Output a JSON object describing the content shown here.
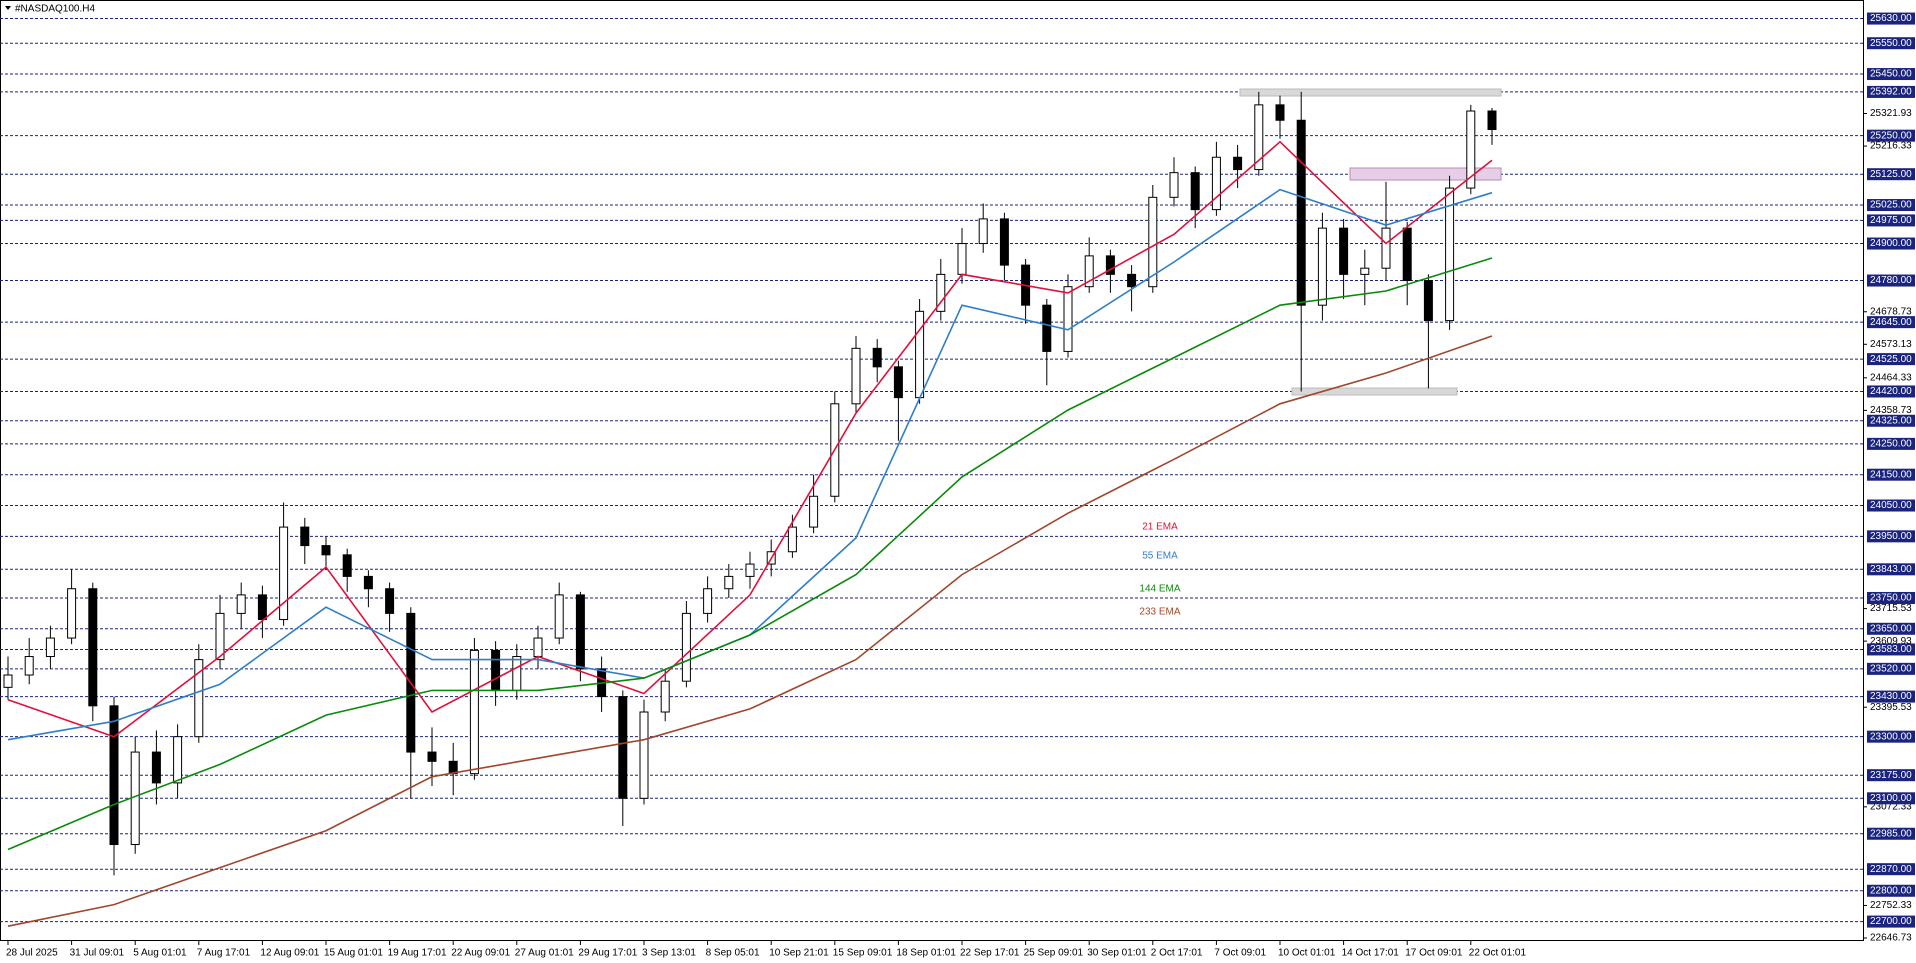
{
  "chart_data": {
    "type": "candlestick",
    "title": "#NASDAQ100.H4",
    "categories": [
      "28 Jul 2025",
      null,
      null,
      "31 Jul 09:01",
      null,
      null,
      "5 Aug 01:01",
      null,
      null,
      "7 Aug 17:01",
      null,
      null,
      "12 Aug 09:01",
      null,
      null,
      "15 Aug 01:01",
      null,
      null,
      "19 Aug 17:01",
      null,
      null,
      "22 Aug 09:01",
      null,
      null,
      "27 Aug 01:01",
      null,
      null,
      "29 Aug 17:01",
      null,
      null,
      "3 Sep 13:01",
      null,
      null,
      "8 Sep 05:01",
      null,
      null,
      "10 Sep 21:01",
      null,
      null,
      "15 Sep 09:01",
      null,
      null,
      "18 Sep 01:01",
      null,
      null,
      "22 Sep 17:01",
      null,
      null,
      "25 Sep 09:01",
      null,
      null,
      "30 Sep 01:01",
      null,
      null,
      "2 Oct 17:01",
      null,
      null,
      "7 Oct 09:01",
      null,
      null,
      "10 Oct 01:01",
      null,
      null,
      "14 Oct 17:01",
      null,
      null,
      "17 Oct 09:01",
      null,
      null,
      "22 Oct 01:01",
      null
    ],
    "open": [
      23460,
      23500,
      23560,
      23620,
      23780,
      23400,
      22950,
      23250,
      23150,
      23300,
      23550,
      23700,
      23760,
      23680,
      23980,
      23920,
      23890,
      23820,
      23780,
      23700,
      23250,
      23220,
      23180,
      23580,
      23450,
      23560,
      23620,
      23760,
      23520,
      23430,
      23100,
      23380,
      23480,
      23700,
      23780,
      23820,
      23860,
      23900,
      23980,
      24080,
      24380,
      24560,
      24500,
      24400,
      24680,
      24800,
      24900,
      24980,
      24830,
      24700,
      24550,
      24760,
      24860,
      24800,
      24760,
      25050,
      25130,
      25010,
      25180,
      25140,
      25350,
      25300,
      24700,
      24950,
      24800,
      24820,
      24950,
      24780,
      24650,
      25080,
      25330
    ],
    "high": [
      23560,
      23620,
      23660,
      23843,
      23800,
      23430,
      23300,
      23320,
      23340,
      23600,
      23760,
      23800,
      23790,
      24060,
      24010,
      23950,
      23910,
      23840,
      23800,
      23720,
      23330,
      23280,
      23620,
      23610,
      23600,
      23660,
      23800,
      23770,
      23560,
      23450,
      23420,
      23520,
      23740,
      23820,
      23860,
      23900,
      23940,
      24020,
      24150,
      24420,
      24600,
      24590,
      24520,
      24720,
      24850,
      24950,
      25030,
      25000,
      24850,
      24720,
      24800,
      24920,
      24880,
      24830,
      25090,
      25180,
      25150,
      25230,
      25220,
      25392,
      25380,
      25392,
      25000,
      24980,
      24880,
      25100,
      24970,
      24800,
      25120,
      25350,
      25340
    ],
    "low": [
      23420,
      23470,
      23520,
      23600,
      23350,
      22850,
      22920,
      23080,
      23100,
      23280,
      23520,
      23650,
      23620,
      23660,
      23860,
      23840,
      23770,
      23720,
      23640,
      23100,
      23140,
      23110,
      23160,
      23400,
      23420,
      23520,
      23600,
      23480,
      23380,
      23010,
      23080,
      23350,
      23460,
      23670,
      23750,
      23780,
      23820,
      23880,
      23960,
      24060,
      24350,
      24450,
      24260,
      24380,
      24650,
      24770,
      24870,
      24780,
      24640,
      24440,
      24530,
      24740,
      24740,
      24680,
      24740,
      25020,
      24950,
      24990,
      25080,
      25120,
      25240,
      24420,
      24650,
      24720,
      24700,
      24780,
      24700,
      24430,
      24620,
      25060,
      25220
    ],
    "close": [
      23500,
      23560,
      23620,
      23780,
      23400,
      22950,
      23250,
      23150,
      23300,
      23550,
      23700,
      23760,
      23680,
      23980,
      23920,
      23890,
      23820,
      23780,
      23700,
      23250,
      23220,
      23180,
      23580,
      23450,
      23560,
      23620,
      23760,
      23520,
      23430,
      23100,
      23380,
      23480,
      23700,
      23780,
      23820,
      23860,
      23900,
      23980,
      24080,
      24380,
      24560,
      24500,
      24400,
      24680,
      24800,
      24900,
      24980,
      24830,
      24700,
      24550,
      24760,
      24860,
      24800,
      24760,
      25050,
      25130,
      25010,
      25180,
      25140,
      25350,
      25300,
      24700,
      24950,
      24800,
      24820,
      24950,
      24780,
      24650,
      25080,
      25330,
      25270
    ],
    "x": [
      0,
      5,
      10,
      15,
      20,
      25,
      30,
      35,
      40,
      45,
      50,
      55,
      60,
      65,
      70
    ],
    "series": [
      {
        "name": "21 EMA",
        "color": "#e0103a",
        "values": [
          23420,
          23300,
          23560,
          23850,
          23380,
          23560,
          23440,
          23760,
          24350,
          24800,
          24740,
          24930,
          25230,
          24900,
          25170
        ]
      },
      {
        "name": "55 EMA",
        "color": "#2f7fc8",
        "values": [
          23290,
          23350,
          23470,
          23720,
          23550,
          23550,
          23490,
          23630,
          23945,
          24700,
          24620,
          24840,
          25075,
          24960,
          25065
        ]
      },
      {
        "name": "144 EMA",
        "color": "#0a8a0a",
        "values": [
          22934,
          23080,
          23210,
          23370,
          23450,
          23450,
          23490,
          23630,
          23826,
          24143,
          24360,
          24530,
          24700,
          24746,
          24853
        ]
      },
      {
        "name": "233 EMA",
        "color": "#a0472a",
        "values": [
          22685,
          22755,
          22875,
          22995,
          23170,
          23230,
          23290,
          23390,
          23550,
          23826,
          24025,
          24200,
          24380,
          24480,
          24600
        ]
      }
    ],
    "ylim": [
      22637,
      25674
    ],
    "yticks": [
      25321.93,
      25216.33,
      24678.73,
      24573.13,
      24464.33,
      24358.73,
      23715.53,
      23609.93,
      23395.53,
      23072.33,
      22752.33,
      22646.73
    ],
    "levels": [
      {
        "value": 25630,
        "label": "25630.00"
      },
      {
        "value": 25550,
        "label": "25550.00"
      },
      {
        "value": 25450,
        "label": "25450.00"
      },
      {
        "value": 25392,
        "label": "25392.00"
      },
      {
        "value": 25250,
        "label": "25250.00"
      },
      {
        "value": 25125,
        "label": "25125.00"
      },
      {
        "value": 25025,
        "label": "25025.00"
      },
      {
        "value": 24975,
        "label": "24975.00"
      },
      {
        "value": 24900,
        "label": "24900.00"
      },
      {
        "value": 24780,
        "label": "24780.00"
      },
      {
        "value": 24645,
        "label": "24645.00"
      },
      {
        "value": 24525,
        "label": "24525.00"
      },
      {
        "value": 24420,
        "label": "24420.00"
      },
      {
        "value": 24325,
        "label": "24325.00"
      },
      {
        "value": 24250,
        "label": "24250.00"
      },
      {
        "value": 24150,
        "label": "24150.00"
      },
      {
        "value": 24050,
        "label": "24050.00"
      },
      {
        "value": 23950,
        "label": "23950.00"
      },
      {
        "value": 23843,
        "label": "23843.00"
      },
      {
        "value": 23750,
        "label": "23750.00"
      },
      {
        "value": 23650,
        "label": "23650.00"
      },
      {
        "value": 23583,
        "label": "23583.00"
      },
      {
        "value": 23520,
        "label": "23520.00"
      },
      {
        "value": 23430,
        "label": "23430.00"
      },
      {
        "value": 23300,
        "label": "23300.00"
      },
      {
        "value": 23175,
        "label": "23175.00"
      },
      {
        "value": 23100,
        "label": "23100.00"
      },
      {
        "value": 22985,
        "label": "22985.00"
      },
      {
        "value": 22870,
        "label": "22870.00"
      },
      {
        "value": 22800,
        "label": "22800.00"
      },
      {
        "value": 22700,
        "label": "22700.00"
      }
    ],
    "level_color": "#1a237e"
  }
}
